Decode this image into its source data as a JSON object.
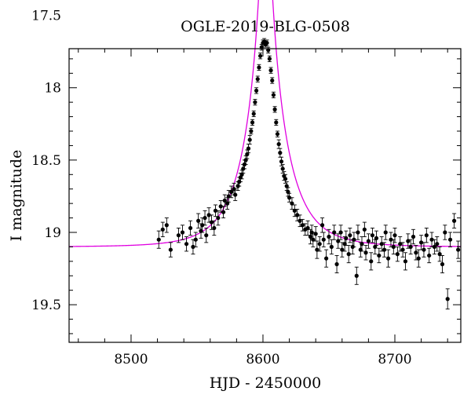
{
  "chart_data": {
    "type": "scatter",
    "title": "OGLE-2019-BLG-0508",
    "xlabel": "HJD - 2450000",
    "ylabel": "I magnitude",
    "xlim": [
      8453,
      8750
    ],
    "ylim": [
      17.73,
      19.76
    ],
    "y_inverted": true,
    "x_ticks": [
      8500,
      8600,
      8700
    ],
    "y_ticks": [
      17.5,
      18,
      18.5,
      19,
      19.5
    ],
    "x_tick_labels": [
      "8500",
      "8600",
      "8700"
    ],
    "y_tick_labels": [
      "17.5",
      "18",
      "18.5",
      "19",
      "19.5"
    ],
    "grid": false,
    "colors": {
      "points": "#000000",
      "model": "#e000e0"
    },
    "series": [
      {
        "kind": "points_with_errorbars",
        "x": [
          8521,
          8524,
          8527,
          8530,
          8536,
          8539,
          8542,
          8545,
          8547,
          8549,
          8551,
          8553,
          8554,
          8556,
          8557,
          8559,
          8561,
          8563,
          8564,
          8566,
          8568,
          8570,
          8571,
          8573,
          8574,
          8576,
          8578,
          8579,
          8581,
          8582,
          8583,
          8584,
          8585,
          8586,
          8587,
          8588,
          8589,
          8590,
          8591,
          8592,
          8593,
          8594,
          8595,
          8596,
          8597,
          8598,
          8599,
          8600,
          8601,
          8602,
          8603,
          8604,
          8605,
          8606,
          8607,
          8608,
          8609,
          8610,
          8611,
          8612,
          8613,
          8614,
          8615,
          8616,
          8617,
          8618,
          8619,
          8620,
          8622,
          8624,
          8626,
          8628,
          8630,
          8632,
          8634,
          8636,
          8637,
          8638,
          8640,
          8641,
          8643,
          8645,
          8646,
          8648,
          8650,
          8652,
          8654,
          8656,
          8657,
          8659,
          8660,
          8662,
          8663,
          8665,
          8666,
          8668,
          8669,
          8671,
          8672,
          8674,
          8675,
          8677,
          8678,
          8680,
          8682,
          8683,
          8685,
          8686,
          8688,
          8690,
          8692,
          8693,
          8695,
          8697,
          8699,
          8700,
          8702,
          8704,
          8706,
          8708,
          8710,
          8712,
          8714,
          8716,
          8718,
          8720,
          8722,
          8724,
          8726,
          8728,
          8730,
          8732,
          8734,
          8736,
          8738,
          8740,
          8742,
          8745,
          8748
        ],
        "y": [
          19.05,
          18.98,
          18.95,
          19.12,
          19.02,
          19.0,
          19.08,
          18.97,
          19.1,
          19.05,
          18.92,
          18.99,
          18.95,
          18.9,
          19.02,
          18.88,
          18.93,
          18.97,
          18.85,
          18.9,
          18.82,
          18.86,
          18.78,
          18.8,
          18.75,
          18.72,
          18.7,
          18.74,
          18.68,
          18.65,
          18.62,
          18.6,
          18.56,
          18.53,
          18.5,
          18.46,
          18.42,
          18.36,
          18.3,
          18.24,
          18.18,
          18.1,
          18.02,
          17.94,
          17.86,
          17.78,
          17.72,
          17.69,
          17.68,
          17.7,
          17.69,
          17.74,
          17.8,
          17.88,
          17.95,
          18.05,
          18.15,
          18.24,
          18.32,
          18.39,
          18.45,
          18.51,
          18.56,
          18.61,
          18.63,
          18.68,
          18.72,
          18.76,
          18.8,
          18.85,
          18.88,
          18.92,
          18.95,
          18.98,
          18.97,
          19.03,
          19.0,
          19.05,
          19.01,
          19.12,
          19.08,
          18.95,
          19.05,
          19.18,
          19.03,
          19.1,
          19.0,
          19.22,
          19.06,
          19.0,
          19.12,
          19.08,
          19.04,
          19.15,
          19.02,
          19.1,
          19.05,
          19.3,
          19.0,
          19.12,
          19.08,
          18.98,
          19.14,
          19.06,
          19.2,
          19.02,
          19.1,
          19.04,
          19.16,
          19.08,
          19.12,
          19.0,
          19.18,
          19.05,
          19.1,
          19.02,
          19.15,
          19.08,
          19.12,
          19.2,
          19.06,
          19.1,
          19.03,
          19.14,
          19.18,
          19.07,
          19.12,
          19.02,
          19.16,
          19.05,
          19.1,
          19.08,
          19.15,
          19.22,
          19.0,
          19.46,
          19.05,
          18.92,
          19.12
        ],
        "err": [
          0.06,
          0.05,
          0.05,
          0.05,
          0.05,
          0.05,
          0.05,
          0.05,
          0.05,
          0.05,
          0.05,
          0.05,
          0.05,
          0.05,
          0.05,
          0.05,
          0.05,
          0.05,
          0.04,
          0.05,
          0.04,
          0.04,
          0.04,
          0.04,
          0.04,
          0.04,
          0.04,
          0.04,
          0.03,
          0.03,
          0.03,
          0.03,
          0.03,
          0.03,
          0.03,
          0.03,
          0.03,
          0.03,
          0.02,
          0.02,
          0.02,
          0.02,
          0.02,
          0.02,
          0.02,
          0.02,
          0.02,
          0.02,
          0.02,
          0.02,
          0.02,
          0.02,
          0.02,
          0.02,
          0.02,
          0.02,
          0.02,
          0.02,
          0.02,
          0.03,
          0.03,
          0.03,
          0.03,
          0.03,
          0.03,
          0.03,
          0.03,
          0.03,
          0.04,
          0.04,
          0.04,
          0.04,
          0.04,
          0.04,
          0.05,
          0.05,
          0.05,
          0.05,
          0.05,
          0.06,
          0.05,
          0.05,
          0.05,
          0.06,
          0.05,
          0.05,
          0.05,
          0.06,
          0.05,
          0.05,
          0.05,
          0.05,
          0.05,
          0.06,
          0.05,
          0.05,
          0.05,
          0.06,
          0.05,
          0.05,
          0.05,
          0.05,
          0.05,
          0.05,
          0.06,
          0.05,
          0.05,
          0.05,
          0.05,
          0.05,
          0.05,
          0.05,
          0.06,
          0.05,
          0.05,
          0.05,
          0.05,
          0.05,
          0.05,
          0.06,
          0.05,
          0.05,
          0.05,
          0.05,
          0.06,
          0.05,
          0.05,
          0.05,
          0.05,
          0.05,
          0.05,
          0.05,
          0.05,
          0.06,
          0.05,
          0.07,
          0.05,
          0.05,
          0.06
        ]
      },
      {
        "kind": "model_curve",
        "model": {
          "type": "point-lens",
          "t0": 8602,
          "tE": 29,
          "u0": 0.098,
          "baseline_mag": 19.1
        }
      }
    ]
  }
}
